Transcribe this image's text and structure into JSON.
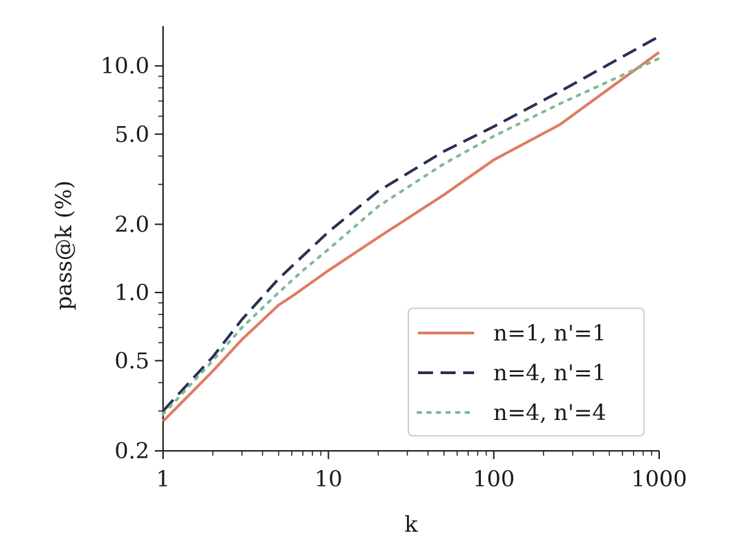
{
  "chart_data": {
    "type": "line",
    "xlabel": "k",
    "ylabel": "pass@k (%)",
    "xscale": "log",
    "yscale": "log",
    "xlim": [
      1,
      1000
    ],
    "ylim": [
      0.2,
      15
    ],
    "xticks": [
      {
        "value": 1,
        "label": "1"
      },
      {
        "value": 10,
        "label": "10"
      },
      {
        "value": 100,
        "label": "100"
      },
      {
        "value": 1000,
        "label": "1000"
      }
    ],
    "yticks": [
      {
        "value": 0.2,
        "label": "0.2"
      },
      {
        "value": 0.5,
        "label": "0.5"
      },
      {
        "value": 1.0,
        "label": "1.0"
      },
      {
        "value": 2.0,
        "label": "2.0"
      },
      {
        "value": 5.0,
        "label": "5.0"
      },
      {
        "value": 10.0,
        "label": "10.0"
      }
    ],
    "grid": false,
    "legend_position": "lower-right",
    "series": [
      {
        "name": "n=1, n'=1",
        "color": "#e07b5f",
        "dash": "solid",
        "x": [
          1,
          2,
          3,
          5,
          6,
          10,
          20,
          50,
          100,
          250,
          1000
        ],
        "y": [
          0.27,
          0.45,
          0.62,
          0.88,
          0.96,
          1.25,
          1.75,
          2.7,
          3.85,
          5.5,
          11.5
        ]
      },
      {
        "name": "n=4, n'=1",
        "color": "#2b2f52",
        "dash": "dashed",
        "x": [
          1,
          2,
          3,
          5,
          7,
          10,
          20,
          50,
          100,
          250,
          1000
        ],
        "y": [
          0.3,
          0.52,
          0.76,
          1.15,
          1.45,
          1.85,
          2.8,
          4.2,
          5.4,
          7.7,
          13.5
        ]
      },
      {
        "name": "n=4, n'=4",
        "color": "#7fb89a",
        "dash": "dotted",
        "x": [
          1,
          2,
          3,
          5,
          7,
          10,
          20,
          50,
          100,
          250,
          1000
        ],
        "y": [
          0.29,
          0.5,
          0.7,
          1.0,
          1.25,
          1.55,
          2.4,
          3.7,
          4.9,
          6.8,
          10.8
        ]
      }
    ]
  }
}
